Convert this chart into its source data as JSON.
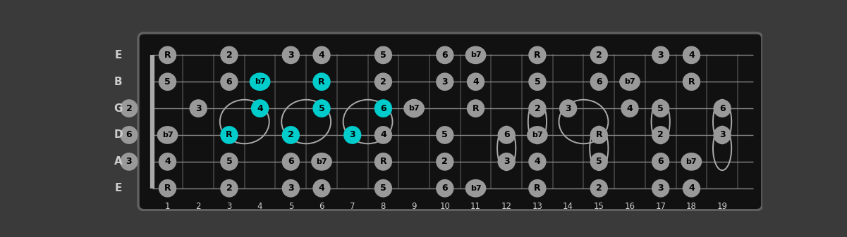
{
  "num_frets": 19,
  "num_strings": 6,
  "string_names": [
    "E",
    "B",
    "G",
    "D",
    "A",
    "E"
  ],
  "fret_numbers": [
    1,
    2,
    3,
    4,
    5,
    6,
    7,
    8,
    9,
    10,
    11,
    12,
    13,
    14,
    15,
    16,
    17,
    18,
    19
  ],
  "bg_color": "#3a3a3a",
  "fretboard_color": "#111111",
  "note_color_normal": "#999999",
  "note_color_highlight": "#00cccc",
  "note_text_color": "#000000",
  "open_circle_color": "#aaaaaa",
  "string_color": "#888888",
  "fret_color": "#444444",
  "label_color": "#cccccc",
  "notes": [
    {
      "string": 0,
      "fret": 1,
      "label": "R",
      "highlight": false
    },
    {
      "string": 0,
      "fret": 3,
      "label": "2",
      "highlight": false
    },
    {
      "string": 0,
      "fret": 5,
      "label": "3",
      "highlight": false
    },
    {
      "string": 0,
      "fret": 6,
      "label": "4",
      "highlight": false
    },
    {
      "string": 0,
      "fret": 8,
      "label": "5",
      "highlight": false
    },
    {
      "string": 0,
      "fret": 10,
      "label": "6",
      "highlight": false
    },
    {
      "string": 0,
      "fret": 11,
      "label": "b7",
      "highlight": false
    },
    {
      "string": 0,
      "fret": 13,
      "label": "R",
      "highlight": false
    },
    {
      "string": 0,
      "fret": 15,
      "label": "2",
      "highlight": false
    },
    {
      "string": 0,
      "fret": 17,
      "label": "3",
      "highlight": false
    },
    {
      "string": 0,
      "fret": 18,
      "label": "4",
      "highlight": false
    },
    {
      "string": 1,
      "fret": 1,
      "label": "5",
      "highlight": false
    },
    {
      "string": 1,
      "fret": 3,
      "label": "6",
      "highlight": false
    },
    {
      "string": 1,
      "fret": 4,
      "label": "b7",
      "highlight": true
    },
    {
      "string": 1,
      "fret": 6,
      "label": "R",
      "highlight": true
    },
    {
      "string": 1,
      "fret": 8,
      "label": "2",
      "highlight": false
    },
    {
      "string": 1,
      "fret": 10,
      "label": "3",
      "highlight": false
    },
    {
      "string": 1,
      "fret": 11,
      "label": "4",
      "highlight": false
    },
    {
      "string": 1,
      "fret": 13,
      "label": "5",
      "highlight": false
    },
    {
      "string": 1,
      "fret": 15,
      "label": "6",
      "highlight": false
    },
    {
      "string": 1,
      "fret": 16,
      "label": "b7",
      "highlight": false
    },
    {
      "string": 1,
      "fret": 18,
      "label": "R",
      "highlight": false
    },
    {
      "string": 2,
      "fret": 0,
      "label": "2",
      "highlight": false
    },
    {
      "string": 2,
      "fret": 2,
      "label": "3",
      "highlight": false
    },
    {
      "string": 2,
      "fret": 4,
      "label": "4",
      "highlight": true
    },
    {
      "string": 2,
      "fret": 6,
      "label": "5",
      "highlight": true
    },
    {
      "string": 2,
      "fret": 8,
      "label": "6",
      "highlight": true
    },
    {
      "string": 2,
      "fret": 9,
      "label": "b7",
      "highlight": false
    },
    {
      "string": 2,
      "fret": 11,
      "label": "R",
      "highlight": false
    },
    {
      "string": 2,
      "fret": 13,
      "label": "2",
      "highlight": false
    },
    {
      "string": 2,
      "fret": 14,
      "label": "3",
      "highlight": false
    },
    {
      "string": 2,
      "fret": 16,
      "label": "4",
      "highlight": false
    },
    {
      "string": 2,
      "fret": 17,
      "label": "5",
      "highlight": false
    },
    {
      "string": 2,
      "fret": 19,
      "label": "6",
      "highlight": false
    },
    {
      "string": 3,
      "fret": 0,
      "label": "6",
      "highlight": false
    },
    {
      "string": 3,
      "fret": 1,
      "label": "b7",
      "highlight": false
    },
    {
      "string": 3,
      "fret": 3,
      "label": "R",
      "highlight": true
    },
    {
      "string": 3,
      "fret": 5,
      "label": "2",
      "highlight": true
    },
    {
      "string": 3,
      "fret": 7,
      "label": "3",
      "highlight": true
    },
    {
      "string": 3,
      "fret": 8,
      "label": "4",
      "highlight": false
    },
    {
      "string": 3,
      "fret": 10,
      "label": "5",
      "highlight": false
    },
    {
      "string": 3,
      "fret": 12,
      "label": "6",
      "highlight": false
    },
    {
      "string": 3,
      "fret": 13,
      "label": "b7",
      "highlight": false
    },
    {
      "string": 3,
      "fret": 15,
      "label": "R",
      "highlight": false
    },
    {
      "string": 3,
      "fret": 17,
      "label": "2",
      "highlight": false
    },
    {
      "string": 3,
      "fret": 19,
      "label": "3",
      "highlight": false
    },
    {
      "string": 4,
      "fret": 0,
      "label": "3",
      "highlight": false
    },
    {
      "string": 4,
      "fret": 1,
      "label": "4",
      "highlight": false
    },
    {
      "string": 4,
      "fret": 3,
      "label": "5",
      "highlight": false
    },
    {
      "string": 4,
      "fret": 5,
      "label": "6",
      "highlight": false
    },
    {
      "string": 4,
      "fret": 6,
      "label": "b7",
      "highlight": false
    },
    {
      "string": 4,
      "fret": 8,
      "label": "R",
      "highlight": false
    },
    {
      "string": 4,
      "fret": 10,
      "label": "2",
      "highlight": false
    },
    {
      "string": 4,
      "fret": 12,
      "label": "3",
      "highlight": false
    },
    {
      "string": 4,
      "fret": 13,
      "label": "4",
      "highlight": false
    },
    {
      "string": 4,
      "fret": 15,
      "label": "5",
      "highlight": false
    },
    {
      "string": 4,
      "fret": 17,
      "label": "6",
      "highlight": false
    },
    {
      "string": 4,
      "fret": 18,
      "label": "b7",
      "highlight": false
    },
    {
      "string": 5,
      "fret": 1,
      "label": "R",
      "highlight": false
    },
    {
      "string": 5,
      "fret": 3,
      "label": "2",
      "highlight": false
    },
    {
      "string": 5,
      "fret": 5,
      "label": "3",
      "highlight": false
    },
    {
      "string": 5,
      "fret": 6,
      "label": "4",
      "highlight": false
    },
    {
      "string": 5,
      "fret": 8,
      "label": "5",
      "highlight": false
    },
    {
      "string": 5,
      "fret": 10,
      "label": "6",
      "highlight": false
    },
    {
      "string": 5,
      "fret": 11,
      "label": "b7",
      "highlight": false
    },
    {
      "string": 5,
      "fret": 13,
      "label": "R",
      "highlight": false
    },
    {
      "string": 5,
      "fret": 15,
      "label": "2",
      "highlight": false
    },
    {
      "string": 5,
      "fret": 17,
      "label": "3",
      "highlight": false
    },
    {
      "string": 5,
      "fret": 18,
      "label": "4",
      "highlight": false
    }
  ],
  "open_circle": {
    "string": 2,
    "fret": 9
  },
  "pair_connects": [
    {
      "string1": 2,
      "fret1": 4,
      "string2": 3,
      "fret2": 3
    },
    {
      "string1": 2,
      "fret1": 6,
      "string2": 3,
      "fret2": 5
    },
    {
      "string1": 2,
      "fret1": 8,
      "string2": 3,
      "fret2": 7
    },
    {
      "string1": 3,
      "fret1": 12,
      "string2": 4,
      "fret2": 12
    },
    {
      "string1": 2,
      "fret1": 13,
      "string2": 3,
      "fret2": 13
    },
    {
      "string1": 2,
      "fret1": 17,
      "string2": 3,
      "fret2": 17
    },
    {
      "string1": 2,
      "fret1": 19,
      "string2": 3,
      "fret2": 19
    },
    {
      "string1": 2,
      "fret1": 14,
      "string2": 3,
      "fret2": 15
    },
    {
      "string1": 3,
      "fret1": 15,
      "string2": 4,
      "fret2": 15
    },
    {
      "string1": 3,
      "fret1": 19,
      "string2": 4,
      "fret2": 19
    }
  ]
}
